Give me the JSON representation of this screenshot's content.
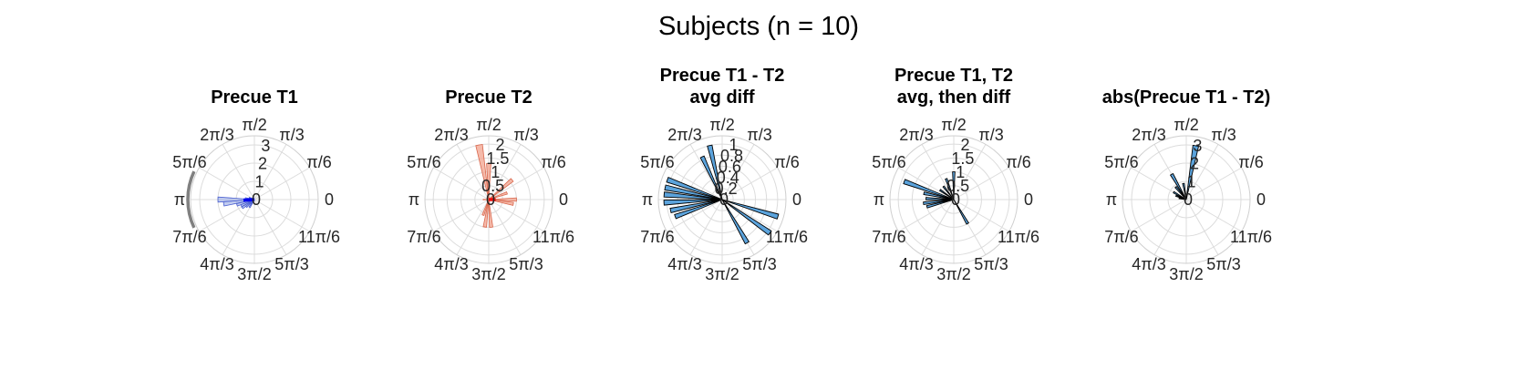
{
  "figure": {
    "title": "Subjects (n = 10)"
  },
  "colors": {
    "blue_fill": "#9fb0e6",
    "blue_edge": "#4a5fd0",
    "blue_mean": "#0000ee",
    "red_fill": "#f2a995",
    "red_edge": "#d9674d",
    "red_mean": "#ee1111",
    "steel_fill": "#5ba3dc",
    "steel_edge": "#000000",
    "arc": "#808080"
  },
  "angle_labels": [
    "0",
    "π/6",
    "π/3",
    "π/2",
    "2π/3",
    "5π/6",
    "π",
    "7π/6",
    "4π/3",
    "3π/2",
    "5π/3",
    "11π/6"
  ],
  "chart_data": [
    {
      "type": "polar-histogram",
      "title": [
        "Precue T1"
      ],
      "r_ticks": [
        "0",
        "1",
        "2",
        "3"
      ],
      "r_max": 3.5,
      "style": "blue",
      "bin_width_deg": 8,
      "bars": [
        {
          "angle_deg": 180,
          "r": 2.0
        },
        {
          "angle_deg": 188,
          "r": 1.7
        },
        {
          "angle_deg": 197,
          "r": 1.0
        },
        {
          "angle_deg": 205,
          "r": 0.8
        },
        {
          "angle_deg": 214,
          "r": 0.8
        },
        {
          "angle_deg": 222,
          "r": 0.6
        },
        {
          "angle_deg": 238,
          "r": 0.5
        },
        {
          "angle_deg": 172,
          "r": 0.5
        },
        {
          "angle_deg": 160,
          "r": 0.3
        },
        {
          "angle_deg": 186,
          "r": 0.4
        }
      ],
      "mean_vector": {
        "angle_deg": 183,
        "r": 0.6
      },
      "arc": {
        "start_deg": 155,
        "end_deg": 205
      }
    },
    {
      "type": "polar-histogram",
      "title": [
        "Precue T2"
      ],
      "r_ticks": [
        "0",
        "0.5",
        "1",
        "1.5",
        "2"
      ],
      "r_max": 2.3,
      "style": "red",
      "bin_width_deg": 7,
      "bars": [
        {
          "angle_deg": 100,
          "r": 2.0
        },
        {
          "angle_deg": 90,
          "r": 1.3
        },
        {
          "angle_deg": 40,
          "r": 1.1
        },
        {
          "angle_deg": 20,
          "r": 0.7
        },
        {
          "angle_deg": 0,
          "r": 1.0
        },
        {
          "angle_deg": 350,
          "r": 0.9
        },
        {
          "angle_deg": 262,
          "r": 1.0
        },
        {
          "angle_deg": 275,
          "r": 1.0
        },
        {
          "angle_deg": 250,
          "r": 0.6
        },
        {
          "angle_deg": 180,
          "r": 0.2
        }
      ],
      "mean_vector": {
        "angle_deg": 0,
        "r": 0.25
      }
    },
    {
      "type": "polar-histogram",
      "title": [
        "Precue T1 - T2",
        "avg diff"
      ],
      "r_ticks": [
        "0",
        "0.2",
        "0.4",
        "0.6",
        "0.8",
        "1"
      ],
      "r_max": 1.15,
      "style": "steel",
      "bin_width_deg": 5,
      "bars": [
        {
          "angle_deg": 115,
          "r": 0.85
        },
        {
          "angle_deg": 103,
          "r": 1.0
        },
        {
          "angle_deg": 160,
          "r": 1.05
        },
        {
          "angle_deg": 168,
          "r": 1.05
        },
        {
          "angle_deg": 175,
          "r": 1.05
        },
        {
          "angle_deg": 183,
          "r": 1.05
        },
        {
          "angle_deg": 192,
          "r": 0.95
        },
        {
          "angle_deg": 200,
          "r": 0.9
        },
        {
          "angle_deg": 343,
          "r": 1.05
        },
        {
          "angle_deg": 325,
          "r": 1.05
        },
        {
          "angle_deg": 300,
          "r": 0.9
        }
      ]
    },
    {
      "type": "polar-histogram",
      "title": [
        "Precue T1, T2",
        "avg, then diff"
      ],
      "r_ticks": [
        "0",
        "0.5",
        "1",
        "1.5",
        "2"
      ],
      "r_max": 2.3,
      "style": "steel",
      "bin_width_deg": 5,
      "bars": [
        {
          "angle_deg": 160,
          "r": 1.9
        },
        {
          "angle_deg": 168,
          "r": 1.1
        },
        {
          "angle_deg": 178,
          "r": 1.0
        },
        {
          "angle_deg": 187,
          "r": 1.1
        },
        {
          "angle_deg": 195,
          "r": 1.0
        },
        {
          "angle_deg": 145,
          "r": 0.6
        },
        {
          "angle_deg": 128,
          "r": 0.6
        },
        {
          "angle_deg": 110,
          "r": 0.8
        },
        {
          "angle_deg": 90,
          "r": 1.0
        },
        {
          "angle_deg": 300,
          "r": 1.0
        }
      ]
    },
    {
      "type": "polar-histogram",
      "title": [
        "abs(Precue T1 - T2)"
      ],
      "r_ticks": [
        "0",
        "1",
        "2",
        "3"
      ],
      "r_max": 3.5,
      "style": "steel",
      "bin_width_deg": 6,
      "bars": [
        {
          "angle_deg": 80,
          "r": 3.0
        },
        {
          "angle_deg": 120,
          "r": 1.6
        },
        {
          "angle_deg": 130,
          "r": 0.9
        },
        {
          "angle_deg": 150,
          "r": 0.8
        },
        {
          "angle_deg": 160,
          "r": 0.6
        },
        {
          "angle_deg": 100,
          "r": 0.9
        },
        {
          "angle_deg": 170,
          "r": 0.4
        }
      ]
    }
  ]
}
